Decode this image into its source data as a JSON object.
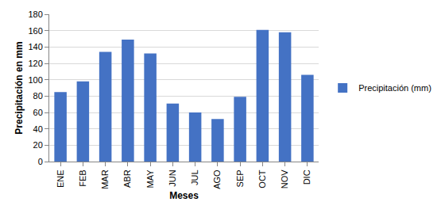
{
  "chart_data": {
    "type": "bar",
    "x_label": "Meses",
    "y_label": "Precipitación en mm",
    "categories": [
      "ENE",
      "FEB",
      "MAR",
      "ABR",
      "MAY",
      "JUN",
      "JUL",
      "AGO",
      "SEP",
      "OCT",
      "NOV",
      "DIC"
    ],
    "series": [
      {
        "name": "Precipitación (mm)",
        "color": "#4472c4",
        "values": [
          85,
          98,
          134,
          149,
          132,
          71,
          60,
          52,
          79,
          161,
          158,
          106
        ]
      }
    ],
    "ylim": [
      0,
      180
    ],
    "yticks": [
      0,
      20,
      40,
      60,
      80,
      100,
      120,
      140,
      160,
      180
    ],
    "grid": true,
    "legend": "right"
  }
}
